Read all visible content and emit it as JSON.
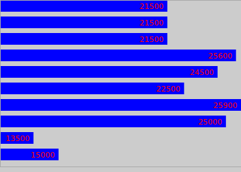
{
  "chart_data": {
    "type": "bar",
    "orientation": "horizontal",
    "categories": [
      null,
      null,
      null,
      null,
      null,
      null,
      null,
      null,
      null,
      null
    ],
    "values": [
      21500,
      21500,
      21500,
      25600,
      24500,
      22500,
      25900,
      25000,
      13500,
      15000
    ],
    "color": "#0000ff",
    "xlim": [
      11500,
      25900
    ],
    "data_labels": true,
    "tick_labels": false,
    "grid": false
  }
}
